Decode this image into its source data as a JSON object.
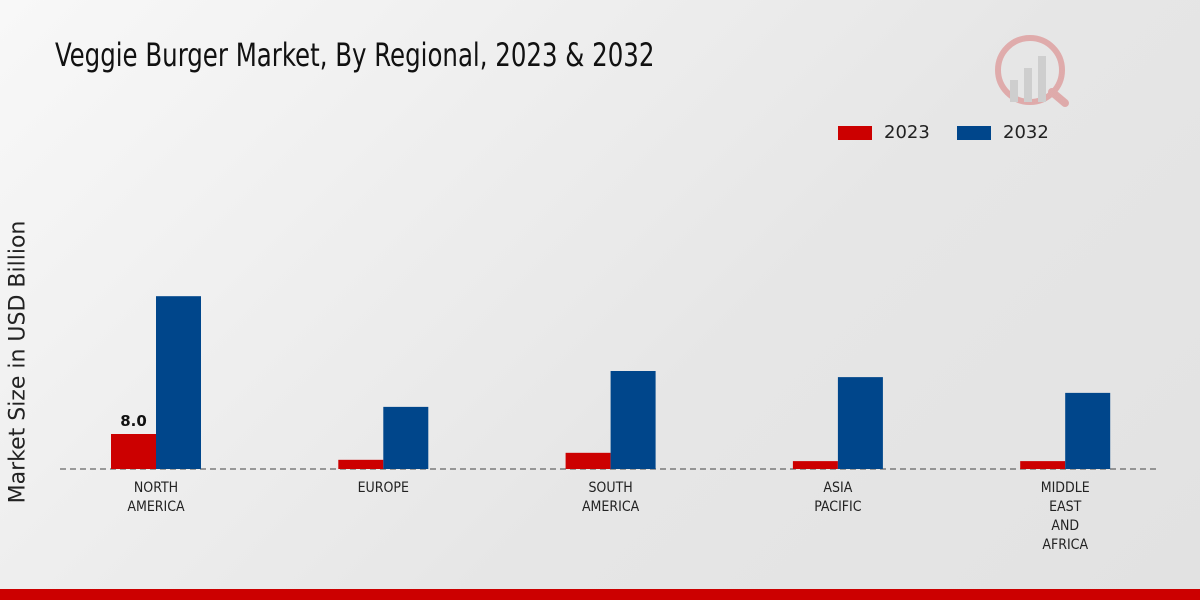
{
  "chart_data": {
    "type": "bar",
    "title": "Veggie Burger Market, By Regional, 2023 & 2032",
    "xlabel": "",
    "ylabel": "Market Size in USD Billion",
    "categories": [
      [
        "NORTH",
        "AMERICA"
      ],
      [
        "EUROPE"
      ],
      [
        "SOUTH",
        "AMERICA"
      ],
      [
        "ASIA",
        "PACIFIC"
      ],
      [
        "MIDDLE",
        "EAST",
        "AND",
        "AFRICA"
      ]
    ],
    "series": [
      {
        "name": "2023",
        "color": "#cc0000",
        "values": [
          8.0,
          2.1,
          3.7,
          1.8,
          1.8
        ]
      },
      {
        "name": "2032",
        "color": "#00468b",
        "values": [
          39.5,
          14.2,
          22.4,
          21.0,
          17.4
        ]
      }
    ],
    "data_labels": [
      {
        "series": 0,
        "index": 0,
        "text": "8.0"
      }
    ],
    "ylim": [
      0,
      45
    ],
    "grid": false,
    "legend_position": "top-right"
  }
}
